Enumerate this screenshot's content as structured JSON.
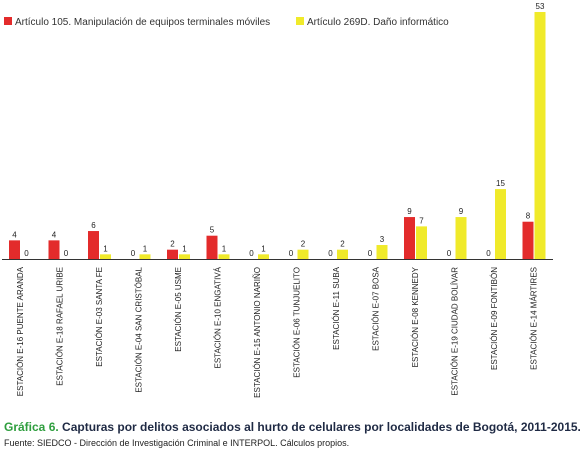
{
  "caption": {
    "prefix": "Gráfica 6.",
    "title": "Capturas por delitos asociados al hurto de celulares por localidades de Bogotá, 2011-2015."
  },
  "source": "Fuente: SIEDCO - Dirección de Investigación Criminal e INTERPOL. Cálculos propios.",
  "chart_data": {
    "type": "bar",
    "title": "",
    "xlabel": "",
    "ylabel": "",
    "ylim": [
      0,
      53
    ],
    "grid": false,
    "legend_position": "top",
    "categories": [
      "ESTACIÓN E-16 PUENTE ARANDA",
      "ESTACIÓN E-18 RAFAEL URIBE",
      "ESTACIÓN E-03 SANTA FE",
      "ESTACIÓN E-04 SAN CRISTÓBAL",
      "ESTACIÓN E-05 USME",
      "ESTACIÓN E-10 ENGATIVÁ",
      "ESTACIÓN E-15 ANTONIO NARIÑO",
      "ESTACIÓN E-06 TUNJUELITO",
      "ESTACIÓN E-11 SUBA",
      "ESTACIÓN E-07 BOSA",
      "ESTACIÓN E-08 KENNEDY",
      "ESTACIÓN E-19 CIUDAD BOLÍVAR",
      "ESTACIÓN E-09 FONTIBÓN",
      "ESTACIÓN E-14 MÁRTIRES"
    ],
    "series": [
      {
        "name": "Artículo 105. Manipulación de equipos terminales móviles",
        "color": "#e32b2b",
        "values": [
          4,
          4,
          6,
          0,
          2,
          5,
          0,
          0,
          0,
          0,
          9,
          0,
          0,
          8
        ]
      },
      {
        "name": "Artículo 269D. Daño informático",
        "color": "#f0ea2a",
        "values": [
          0,
          0,
          1,
          1,
          1,
          1,
          1,
          2,
          2,
          3,
          7,
          9,
          15,
          53
        ]
      }
    ]
  }
}
